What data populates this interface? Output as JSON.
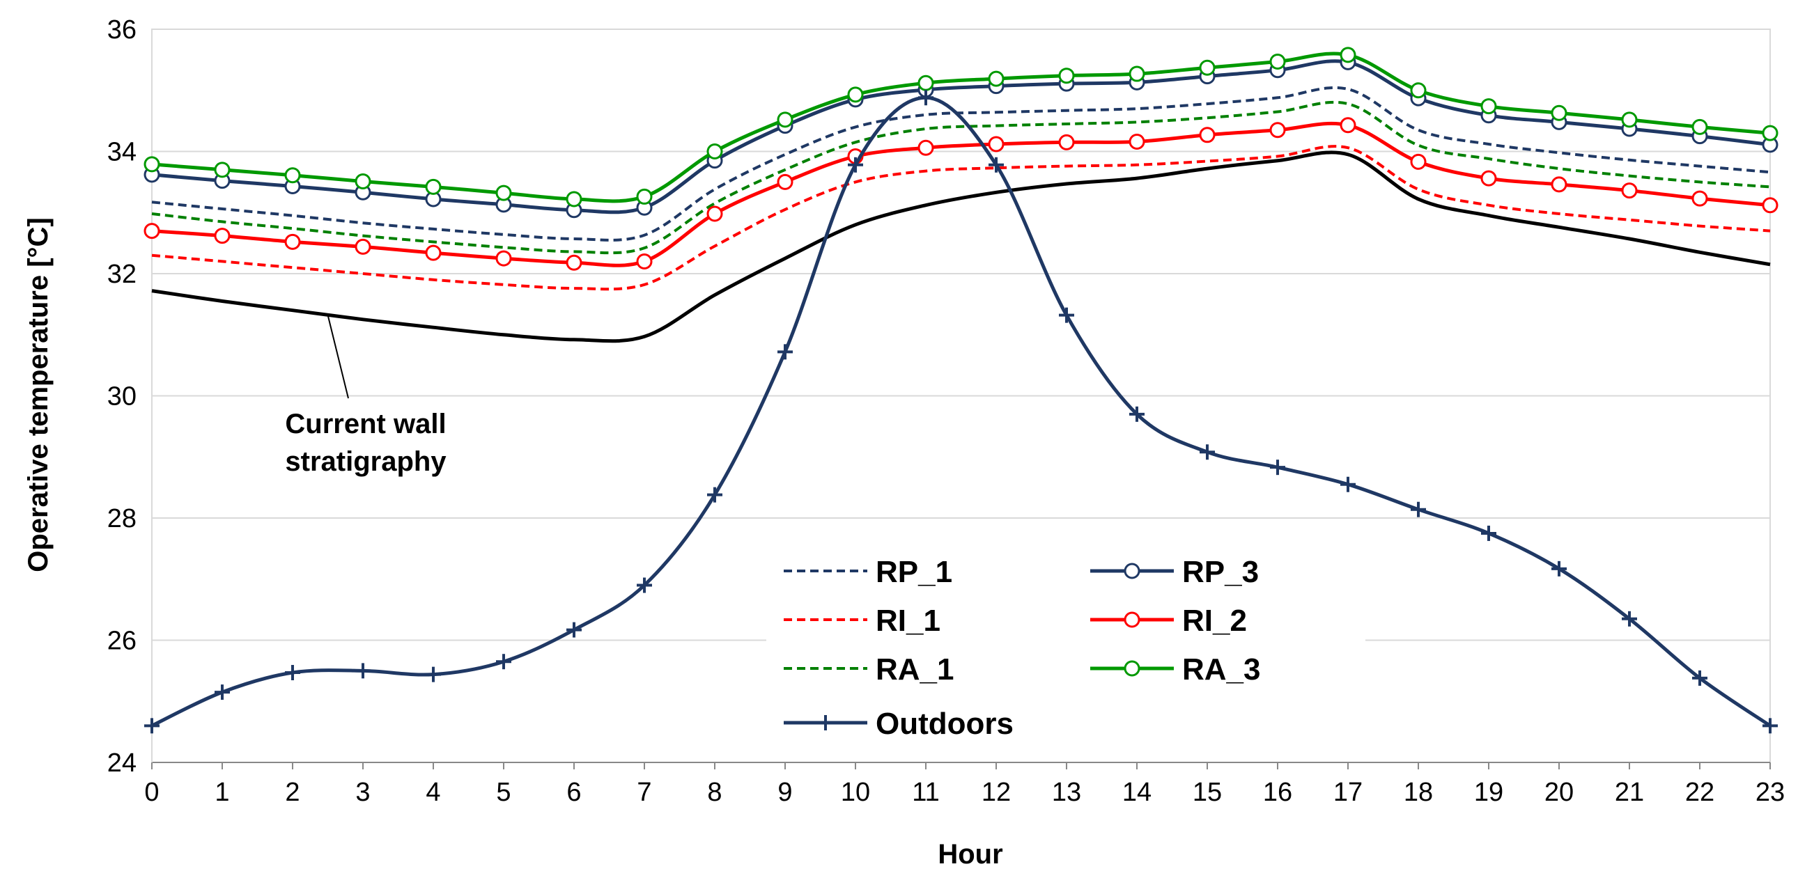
{
  "chart_data": {
    "type": "line",
    "title": "",
    "xlabel": "Hour",
    "ylabel": "Operative temperature [°C]",
    "xlim": [
      0,
      23
    ],
    "ylim": [
      24,
      36
    ],
    "x_ticks": [
      0,
      1,
      2,
      3,
      4,
      5,
      6,
      7,
      8,
      9,
      10,
      11,
      12,
      13,
      14,
      15,
      16,
      17,
      18,
      19,
      20,
      21,
      22,
      23
    ],
    "y_ticks": [
      24,
      26,
      28,
      30,
      32,
      34,
      36
    ],
    "grid": "horizontal",
    "x": [
      0,
      1,
      2,
      3,
      4,
      5,
      6,
      7,
      8,
      9,
      10,
      11,
      12,
      13,
      14,
      15,
      16,
      17,
      18,
      19,
      20,
      21,
      22,
      23
    ],
    "series": [
      {
        "name": "Current wall stratigraphy",
        "color": "#000000",
        "style": "solid",
        "marker": "none",
        "show_in_legend": false,
        "values": [
          31.72,
          31.55,
          31.4,
          31.25,
          31.12,
          31.0,
          30.92,
          30.97,
          31.65,
          32.25,
          32.8,
          33.12,
          33.33,
          33.47,
          33.56,
          33.72,
          33.85,
          33.95,
          33.22,
          32.95,
          32.76,
          32.57,
          32.35,
          32.15
        ]
      },
      {
        "name": "RI_1",
        "color": "#ff0000",
        "style": "dashed",
        "marker": "none",
        "show_in_legend": true,
        "values": [
          32.3,
          32.2,
          32.1,
          32.0,
          31.9,
          31.82,
          31.76,
          31.82,
          32.45,
          33.05,
          33.5,
          33.68,
          33.73,
          33.76,
          33.78,
          33.84,
          33.92,
          34.06,
          33.38,
          33.12,
          32.98,
          32.88,
          32.78,
          32.7
        ]
      },
      {
        "name": "RA_1",
        "color": "#008000",
        "style": "dashed",
        "marker": "none",
        "show_in_legend": true,
        "values": [
          32.98,
          32.85,
          32.74,
          32.62,
          32.52,
          32.43,
          32.36,
          32.42,
          33.15,
          33.7,
          34.15,
          34.37,
          34.42,
          34.45,
          34.48,
          34.55,
          34.65,
          34.78,
          34.1,
          33.88,
          33.72,
          33.6,
          33.5,
          33.42
        ]
      },
      {
        "name": "RP_1",
        "color": "#1f3864",
        "style": "dashed",
        "marker": "none",
        "show_in_legend": true,
        "values": [
          33.17,
          33.06,
          32.95,
          32.83,
          32.73,
          32.64,
          32.57,
          32.63,
          33.38,
          33.95,
          34.4,
          34.6,
          34.64,
          34.67,
          34.7,
          34.78,
          34.88,
          35.02,
          34.35,
          34.12,
          33.98,
          33.86,
          33.76,
          33.66
        ]
      },
      {
        "name": "RI_2",
        "color": "#ff0000",
        "style": "solid",
        "marker": "circle",
        "show_in_legend": true,
        "values": [
          32.7,
          32.62,
          32.52,
          32.44,
          32.34,
          32.25,
          32.18,
          32.2,
          32.98,
          33.5,
          33.92,
          34.06,
          34.12,
          34.15,
          34.16,
          34.27,
          34.35,
          34.43,
          33.83,
          33.56,
          33.46,
          33.36,
          33.23,
          33.12
        ]
      },
      {
        "name": "RP_3",
        "color": "#1f3864",
        "style": "solid",
        "marker": "circle",
        "show_in_legend": true,
        "values": [
          33.62,
          33.52,
          33.43,
          33.33,
          33.22,
          33.13,
          33.04,
          33.08,
          33.85,
          34.42,
          34.85,
          35.01,
          35.07,
          35.11,
          35.13,
          35.23,
          35.33,
          35.46,
          34.87,
          34.59,
          34.48,
          34.37,
          34.25,
          34.11
        ]
      },
      {
        "name": "RA_3",
        "color": "#009900",
        "style": "solid",
        "marker": "circle",
        "show_in_legend": true,
        "values": [
          33.79,
          33.7,
          33.61,
          33.51,
          33.42,
          33.32,
          33.22,
          33.26,
          34.0,
          34.52,
          34.93,
          35.12,
          35.19,
          35.24,
          35.27,
          35.37,
          35.47,
          35.58,
          35.0,
          34.74,
          34.63,
          34.52,
          34.4,
          34.3
        ]
      },
      {
        "name": "Outdoors",
        "color": "#1f3864",
        "style": "solid",
        "marker": "plus",
        "show_in_legend": true,
        "values": [
          24.6,
          25.15,
          25.47,
          25.5,
          25.44,
          25.65,
          26.17,
          26.9,
          28.38,
          30.72,
          33.78,
          34.88,
          33.78,
          31.32,
          29.7,
          29.08,
          28.83,
          28.55,
          28.14,
          27.75,
          27.17,
          26.35,
          25.38,
          24.6
        ]
      }
    ],
    "legend": {
      "placement": "bottom-center",
      "entries": [
        "RP_1",
        "RP_3",
        "RI_1",
        "RI_2",
        "RA_1",
        "RA_3",
        "Outdoors"
      ]
    },
    "annotations": [
      {
        "text_lines": [
          "Current wall",
          "stratigraphy"
        ],
        "points_to": "Current wall stratigraphy",
        "at_hour": 2.5
      }
    ]
  }
}
